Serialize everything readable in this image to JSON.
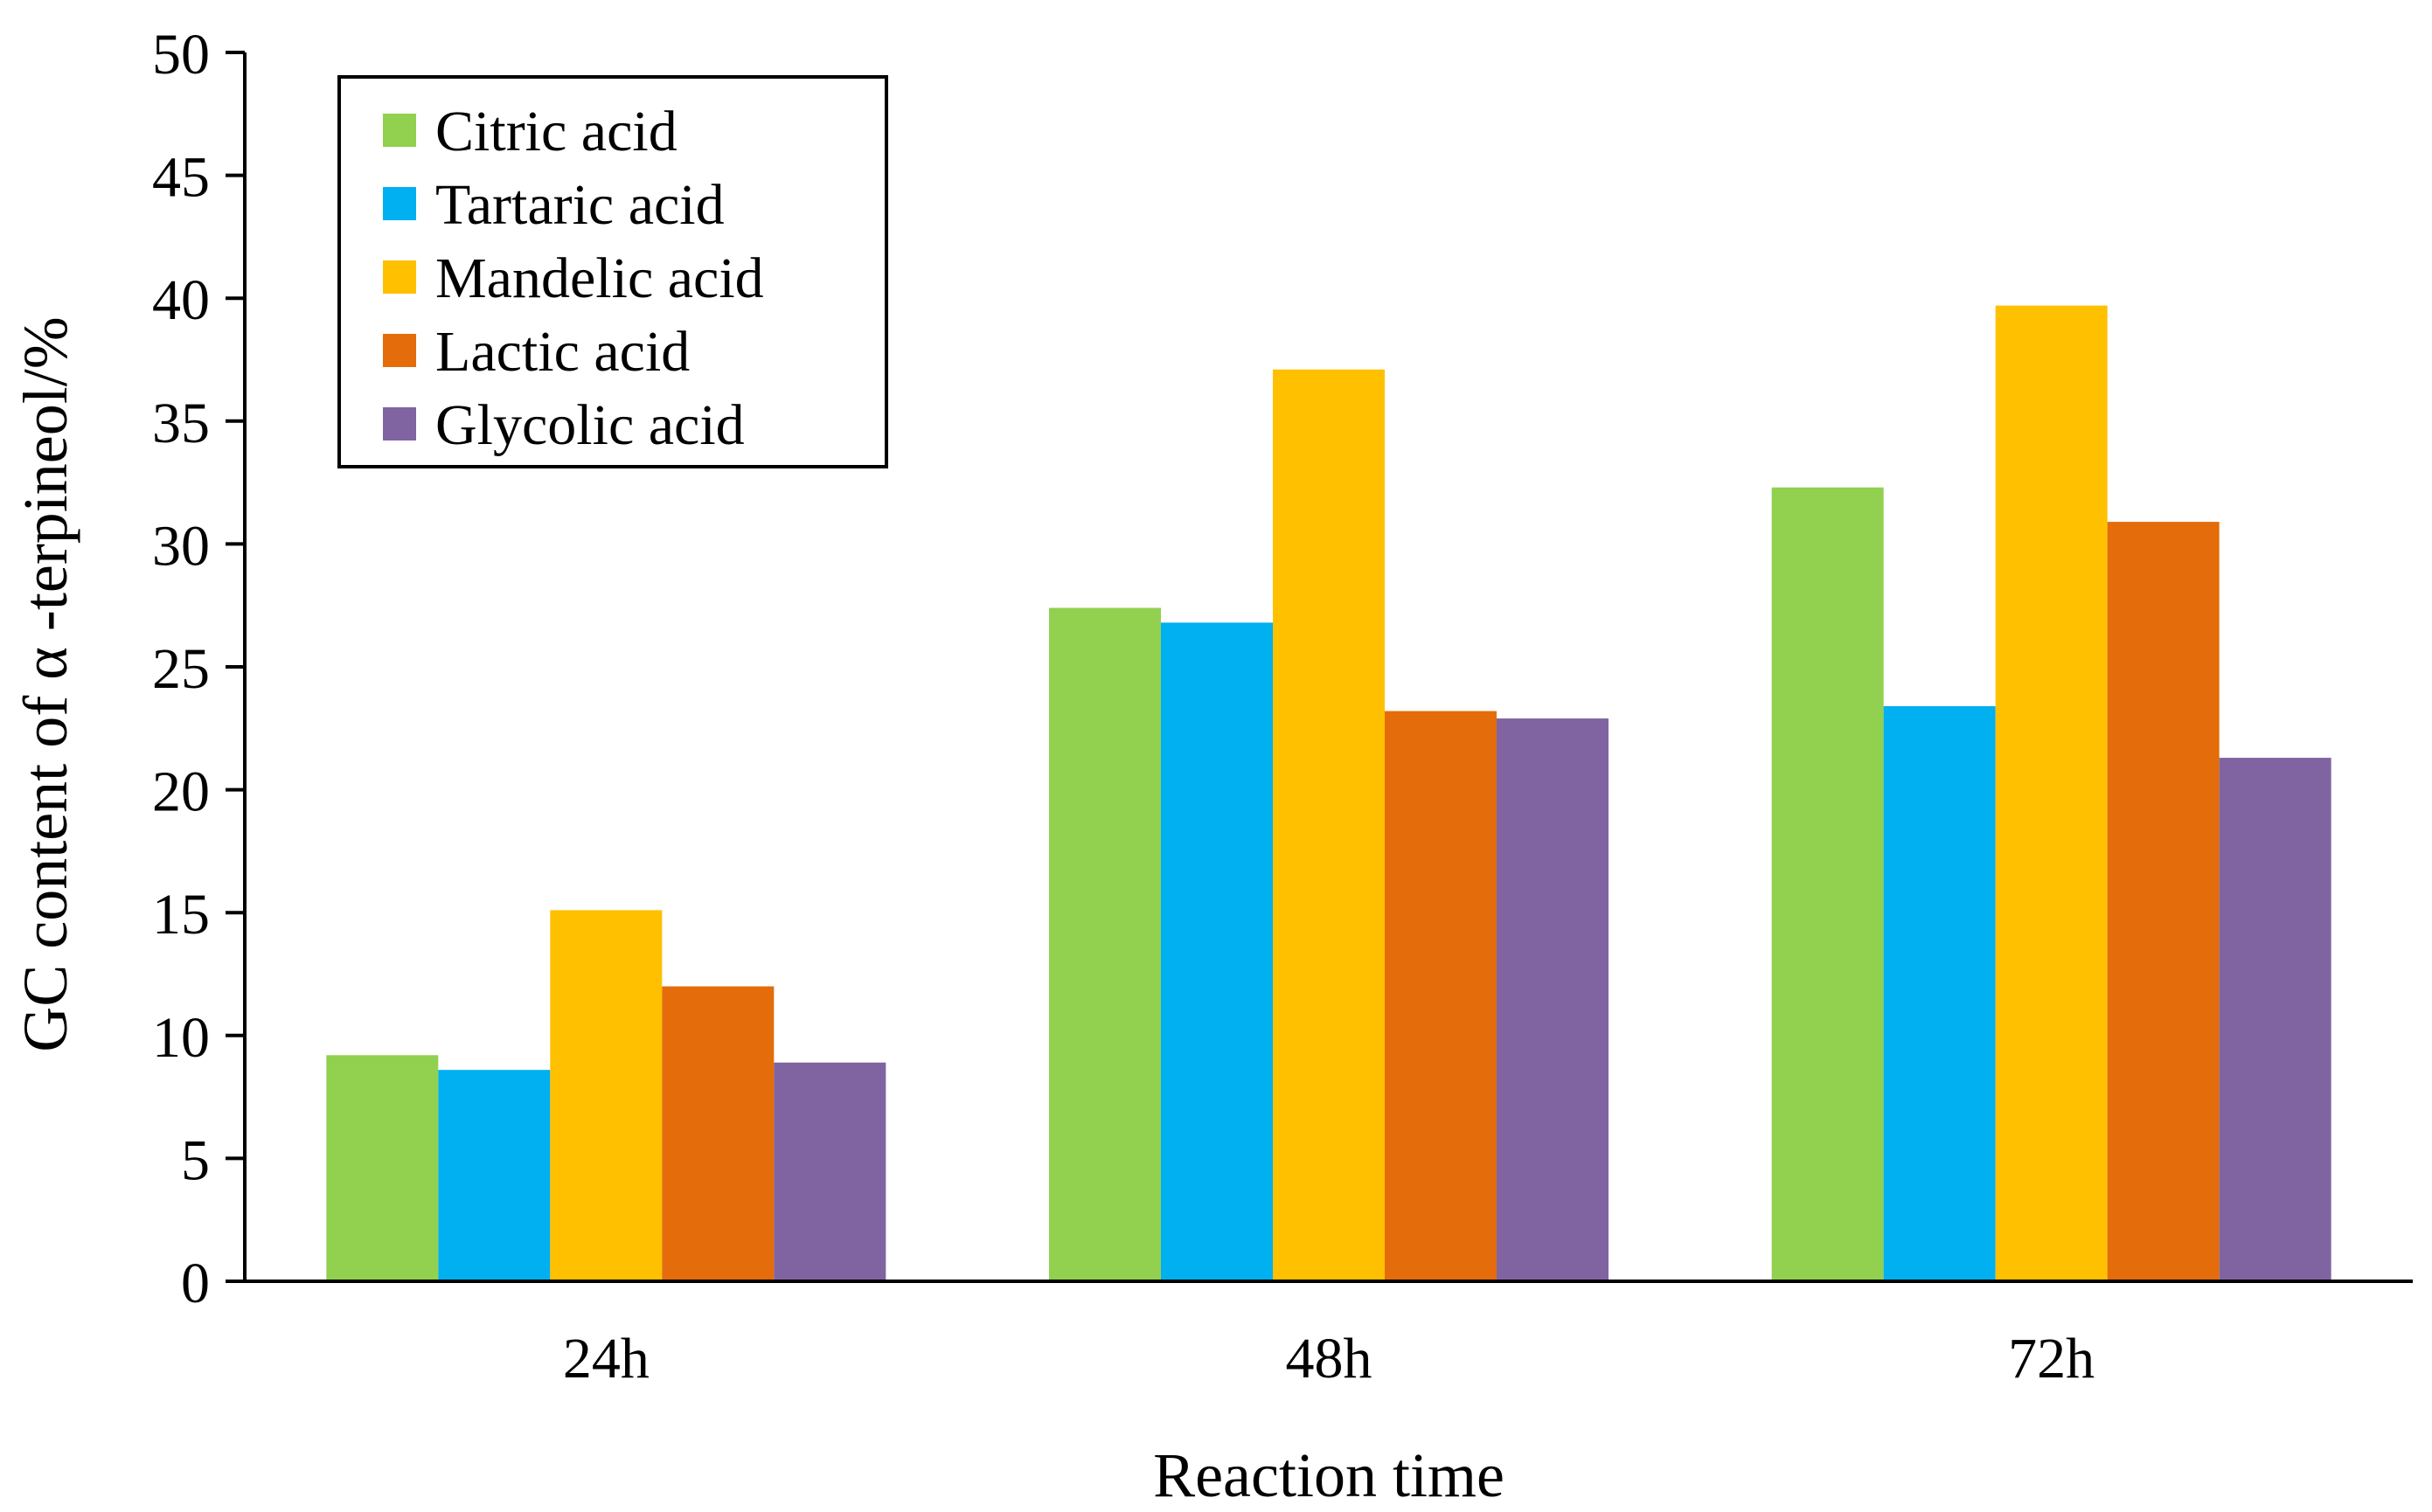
{
  "chart_data": {
    "type": "bar",
    "title": "",
    "xlabel": "Reaction time",
    "ylabel": "GC content of α -terpineol/%",
    "ylim": [
      0,
      50
    ],
    "yticks": [
      0,
      5,
      10,
      15,
      20,
      25,
      30,
      35,
      40,
      45,
      50
    ],
    "grid": false,
    "legend_position": "top-left",
    "categories": [
      "24h",
      "48h",
      "72h"
    ],
    "series": [
      {
        "name": "Citric acid",
        "color": "#92d050",
        "values": [
          9.2,
          27.4,
          32.3
        ]
      },
      {
        "name": "Tartaric acid",
        "color": "#00b0f0",
        "values": [
          8.6,
          26.8,
          23.4
        ]
      },
      {
        "name": "Mandelic acid",
        "color": "#ffc000",
        "values": [
          15.1,
          37.1,
          39.7
        ]
      },
      {
        "name": "Lactic acid",
        "color": "#e46c0a",
        "values": [
          12.0,
          23.2,
          30.9
        ]
      },
      {
        "name": "Glycolic acid",
        "color": "#8064a2",
        "values": [
          8.9,
          22.9,
          21.3
        ]
      }
    ]
  }
}
